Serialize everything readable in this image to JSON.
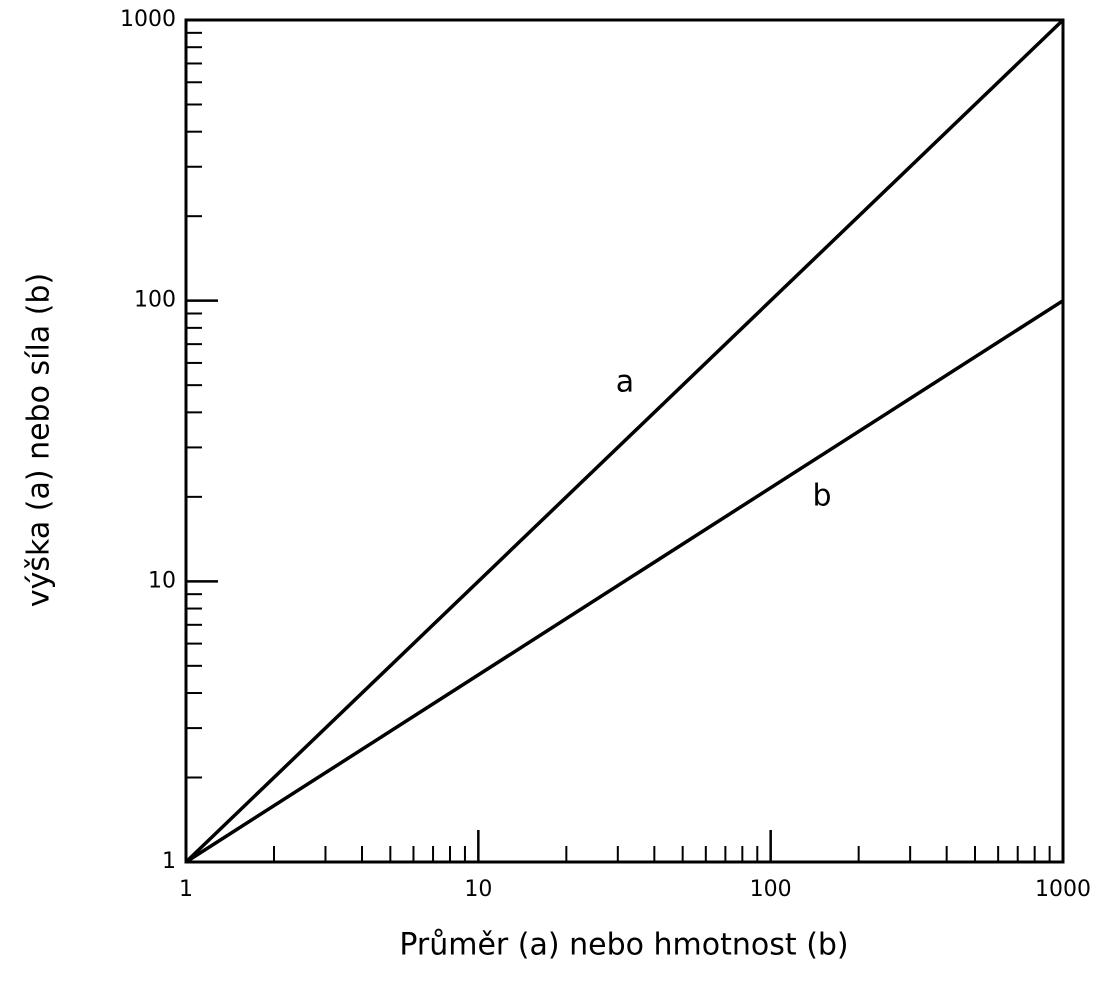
{
  "chart_data": {
    "type": "line",
    "x_label": "Průměr (a) nebo hmotnost (b)",
    "y_label": "výška (a) nebo síla (b)",
    "x": [
      1,
      1000
    ],
    "series": [
      {
        "name": "a",
        "color": "#000000",
        "values": [
          1,
          1000
        ]
      },
      {
        "name": "b",
        "color": "#000000",
        "values": [
          1,
          100
        ]
      }
    ],
    "xlim": [
      1,
      1000
    ],
    "ylim": [
      1,
      1000
    ],
    "xscale": "log",
    "yscale": "log",
    "xticks": [
      1,
      10,
      100,
      1000
    ],
    "yticks": [
      1,
      10,
      100,
      1000
    ],
    "xminorticks": [
      2,
      3,
      4,
      5,
      6,
      7,
      8,
      9,
      20,
      30,
      40,
      50,
      60,
      70,
      80,
      90,
      200,
      300,
      400,
      500,
      600,
      700,
      800,
      900
    ],
    "yminorticks": [
      2,
      3,
      4,
      5,
      6,
      7,
      8,
      9,
      20,
      30,
      40,
      50,
      60,
      70,
      80,
      90,
      200,
      300,
      400,
      500,
      600,
      700,
      800,
      900
    ],
    "grid": false
  }
}
